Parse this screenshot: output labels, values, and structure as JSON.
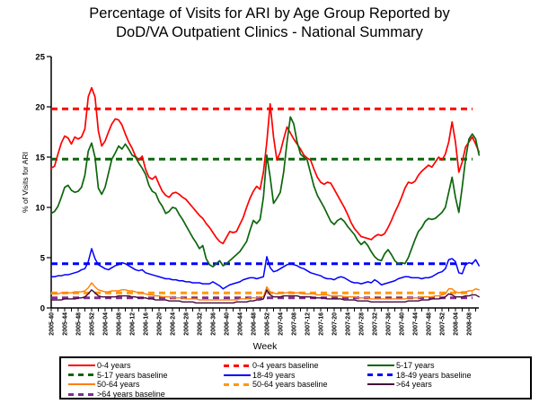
{
  "chart": {
    "title_line1": "Percentage of Visits for ARI by Age Group Reported by",
    "title_line2": "DoD/VA Outpatient Clinics - National Summary",
    "xlabel": "Week",
    "ylabel": "% of Visits for ARI"
  },
  "chart_data": {
    "type": "line",
    "title": "Percentage of Visits for ARI by Age Group Reported by DoD/VA Outpatient Clinics - National Summary",
    "xlabel": "Week",
    "ylabel": "% of Visits for ARI",
    "ylim": [
      0,
      25
    ],
    "grid": false,
    "legend_position": "bottom",
    "y_ticks": [
      0,
      5,
      10,
      15,
      20,
      25
    ],
    "n_points": 128,
    "x_start_week": "2005-40",
    "x_tick_interval_weeks": 4,
    "x_tick_labels": [
      "2005-40",
      "2005-44",
      "2005-48",
      "2005-52",
      "2006-04",
      "2006-08",
      "2006-12",
      "2006-16",
      "2006-20",
      "2006-24",
      "2006-28",
      "2006-32",
      "2006-36",
      "2006-40",
      "2006-44",
      "2006-48",
      "2006-52",
      "2007-04",
      "2007-08",
      "2007-12",
      "2007-16",
      "2007-20",
      "2007-24",
      "2007-28",
      "2007-32",
      "2007-36",
      "2007-40",
      "2007-44",
      "2007-48",
      "2007-52",
      "2008-04",
      "2008-08"
    ],
    "series": [
      {
        "name": "0-4 years",
        "color": "#FF0000",
        "width": 1.7,
        "values": [
          13.9,
          14.1,
          15.3,
          16.4,
          17.1,
          16.9,
          16.3,
          17.0,
          16.8,
          17.0,
          17.8,
          21.0,
          21.9,
          21.0,
          17.6,
          16.1,
          16.6,
          17.5,
          18.3,
          18.8,
          18.7,
          18.2,
          17.3,
          16.5,
          15.9,
          15.1,
          14.7,
          15.1,
          13.8,
          13.0,
          12.8,
          13.1,
          12.3,
          11.6,
          11.2,
          11.0,
          11.4,
          11.5,
          11.3,
          11.0,
          10.8,
          10.4,
          10.0,
          9.6,
          9.2,
          8.9,
          8.4,
          8.0,
          7.5,
          7.0,
          6.6,
          6.4,
          7.0,
          7.6,
          7.5,
          7.6,
          8.3,
          9.0,
          10.0,
          10.9,
          11.6,
          12.1,
          11.8,
          13.5,
          16.5,
          20.3,
          17.0,
          14.7,
          15.5,
          16.8,
          18.0,
          17.4,
          16.8,
          16.3,
          15.8,
          15.2,
          14.9,
          14.7,
          13.8,
          13.0,
          12.5,
          12.3,
          12.5,
          12.4,
          11.8,
          11.2,
          10.6,
          10.0,
          9.3,
          8.5,
          7.9,
          7.5,
          7.1,
          7.0,
          6.9,
          6.8,
          7.1,
          7.3,
          7.2,
          7.4,
          8.0,
          8.7,
          9.5,
          10.2,
          11.0,
          11.9,
          12.5,
          12.4,
          12.6,
          13.2,
          13.6,
          13.9,
          14.2,
          14.0,
          14.5,
          15.0,
          14.7,
          15.3,
          16.5,
          18.5,
          16.5,
          13.5,
          14.5,
          16.0,
          16.5,
          17.0,
          16.3,
          15.5
        ]
      },
      {
        "name": "5-17 years",
        "color": "#0D660D",
        "width": 1.7,
        "values": [
          9.4,
          9.6,
          10.1,
          11.0,
          12.0,
          12.2,
          11.7,
          11.5,
          11.6,
          12.0,
          13.2,
          15.6,
          16.4,
          15.0,
          11.9,
          11.3,
          12.0,
          13.4,
          14.8,
          15.4,
          16.1,
          15.8,
          16.3,
          15.8,
          15.2,
          15.0,
          14.4,
          13.9,
          13.3,
          12.2,
          11.6,
          11.4,
          10.6,
          10.1,
          9.4,
          9.6,
          10.0,
          9.9,
          9.3,
          8.8,
          8.2,
          7.6,
          7.0,
          6.5,
          5.9,
          6.2,
          4.9,
          4.3,
          4.1,
          4.4,
          4.7,
          4.2,
          4.4,
          4.7,
          5.0,
          5.3,
          5.6,
          6.1,
          6.6,
          7.7,
          8.7,
          8.4,
          8.8,
          11.0,
          15.2,
          13.0,
          10.4,
          10.9,
          11.5,
          13.5,
          16.5,
          19.0,
          18.3,
          16.5,
          15.3,
          15.0,
          14.7,
          13.4,
          12.1,
          11.2,
          10.6,
          10.0,
          9.3,
          8.6,
          8.3,
          8.7,
          8.9,
          8.6,
          8.1,
          7.7,
          7.3,
          6.7,
          6.3,
          6.6,
          6.2,
          5.6,
          5.1,
          4.8,
          4.7,
          5.4,
          5.8,
          5.3,
          4.7,
          4.4,
          4.5,
          4.4,
          5.0,
          5.9,
          6.8,
          7.6,
          8.0,
          8.6,
          8.9,
          8.8,
          8.9,
          9.2,
          9.5,
          10.0,
          11.5,
          13.0,
          11.0,
          9.5,
          12.0,
          14.8,
          16.8,
          17.3,
          16.8,
          15.2
        ]
      },
      {
        "name": "18-49 years",
        "color": "#0000FF",
        "width": 1.5,
        "values": [
          3.1,
          3.1,
          3.2,
          3.2,
          3.3,
          3.3,
          3.4,
          3.5,
          3.6,
          3.8,
          3.9,
          4.6,
          5.9,
          4.9,
          4.3,
          4.1,
          3.9,
          3.8,
          4.0,
          4.2,
          4.3,
          4.5,
          4.4,
          4.2,
          4.0,
          3.8,
          3.7,
          3.8,
          3.5,
          3.4,
          3.3,
          3.2,
          3.1,
          3.0,
          2.9,
          2.9,
          2.8,
          2.8,
          2.7,
          2.7,
          2.6,
          2.6,
          2.5,
          2.5,
          2.5,
          2.4,
          2.4,
          2.4,
          2.6,
          2.4,
          2.2,
          1.9,
          2.1,
          2.3,
          2.4,
          2.5,
          2.6,
          2.8,
          2.9,
          3.0,
          3.0,
          2.9,
          3.0,
          3.1,
          5.1,
          4.0,
          3.6,
          3.7,
          3.9,
          4.1,
          4.3,
          4.4,
          4.3,
          4.2,
          4.0,
          3.9,
          3.7,
          3.5,
          3.4,
          3.3,
          3.2,
          3.0,
          2.9,
          2.9,
          2.8,
          3.0,
          3.1,
          3.0,
          2.8,
          2.6,
          2.5,
          2.5,
          2.4,
          2.5,
          2.6,
          2.5,
          2.8,
          2.6,
          2.3,
          2.4,
          2.5,
          2.6,
          2.7,
          2.9,
          3.0,
          3.1,
          3.1,
          3.0,
          3.0,
          3.0,
          2.9,
          3.0,
          3.0,
          3.1,
          3.3,
          3.5,
          3.6,
          3.9,
          4.8,
          4.9,
          4.6,
          3.5,
          3.4,
          4.3,
          4.5,
          4.4,
          4.8,
          4.2
        ]
      },
      {
        "name": "50-64 years",
        "color": "#FF7F00",
        "width": 1.4,
        "values": [
          1.4,
          1.4,
          1.4,
          1.5,
          1.5,
          1.5,
          1.5,
          1.6,
          1.6,
          1.6,
          1.7,
          2.0,
          2.5,
          2.1,
          1.8,
          1.7,
          1.6,
          1.6,
          1.7,
          1.7,
          1.7,
          1.8,
          1.8,
          1.7,
          1.7,
          1.6,
          1.5,
          1.5,
          1.4,
          1.3,
          1.3,
          1.2,
          1.2,
          1.1,
          1.1,
          1.1,
          1.0,
          1.0,
          1.0,
          1.0,
          0.9,
          0.9,
          0.9,
          0.9,
          0.8,
          0.8,
          0.8,
          0.8,
          0.8,
          0.8,
          0.8,
          0.8,
          0.8,
          0.8,
          0.8,
          0.8,
          0.9,
          0.9,
          0.9,
          1.0,
          1.0,
          1.0,
          1.1,
          1.1,
          2.1,
          1.6,
          1.5,
          1.4,
          1.5,
          1.5,
          1.5,
          1.6,
          1.5,
          1.5,
          1.5,
          1.4,
          1.4,
          1.4,
          1.4,
          1.3,
          1.3,
          1.3,
          1.3,
          1.2,
          1.2,
          1.2,
          1.2,
          1.1,
          1.1,
          1.1,
          1.1,
          1.0,
          1.0,
          1.0,
          1.0,
          0.9,
          0.9,
          0.9,
          0.9,
          0.9,
          0.9,
          0.9,
          0.9,
          0.9,
          0.9,
          0.9,
          1.0,
          1.0,
          1.0,
          1.0,
          1.1,
          1.1,
          1.1,
          1.1,
          1.2,
          1.2,
          1.3,
          1.4,
          1.9,
          1.9,
          1.6,
          1.5,
          1.6,
          1.6,
          1.7,
          1.7,
          1.9,
          1.8
        ]
      },
      {
        "name": ">64 years",
        "color": "#45093F",
        "width": 1.4,
        "values": [
          0.8,
          0.8,
          0.8,
          0.8,
          0.9,
          0.9,
          0.9,
          0.9,
          1.0,
          1.0,
          1.1,
          1.4,
          1.8,
          1.5,
          1.2,
          1.1,
          1.1,
          1.1,
          1.1,
          1.1,
          1.2,
          1.2,
          1.2,
          1.2,
          1.1,
          1.1,
          1.0,
          1.0,
          1.0,
          0.9,
          0.9,
          0.8,
          0.8,
          0.8,
          0.8,
          0.7,
          0.7,
          0.7,
          0.7,
          0.6,
          0.6,
          0.6,
          0.6,
          0.5,
          0.5,
          0.5,
          0.5,
          0.5,
          0.5,
          0.5,
          0.5,
          0.5,
          0.5,
          0.5,
          0.5,
          0.6,
          0.6,
          0.6,
          0.6,
          0.7,
          0.7,
          0.8,
          0.8,
          0.9,
          1.8,
          1.3,
          1.1,
          1.1,
          1.1,
          1.2,
          1.2,
          1.2,
          1.2,
          1.2,
          1.1,
          1.1,
          1.1,
          1.1,
          1.0,
          1.0,
          1.0,
          1.0,
          0.9,
          0.9,
          0.9,
          0.9,
          0.9,
          0.8,
          0.8,
          0.8,
          0.8,
          0.7,
          0.7,
          0.7,
          0.7,
          0.6,
          0.6,
          0.6,
          0.6,
          0.6,
          0.6,
          0.6,
          0.6,
          0.6,
          0.6,
          0.6,
          0.7,
          0.7,
          0.7,
          0.7,
          0.8,
          0.8,
          0.8,
          0.9,
          0.9,
          0.9,
          1.0,
          1.1,
          1.4,
          1.3,
          1.1,
          1.1,
          1.1,
          1.2,
          1.2,
          1.3,
          1.3,
          1.1
        ]
      }
    ],
    "baselines": [
      {
        "name": "0-4 years baseline",
        "color": "#FF0000",
        "value": 19.8
      },
      {
        "name": "5-17 years baseline",
        "color": "#0D660D",
        "value": 14.8
      },
      {
        "name": "18-49 years baseline",
        "color": "#0000FF",
        "value": 4.4
      },
      {
        "name": "50-64 years baseline",
        "color": "#FF9900",
        "value": 1.5
      },
      {
        "name": ">64 years baseline",
        "color": "#7D2E8C",
        "value": 1.0
      }
    ]
  },
  "legend": {
    "items": [
      {
        "label": "0-4 years",
        "color": "#FF0000",
        "style": "solid"
      },
      {
        "label": "0-4 years baseline",
        "color": "#FF0000",
        "style": "dashed"
      },
      {
        "label": "5-17 years",
        "color": "#0D660D",
        "style": "solid"
      },
      {
        "label": "5-17 years baseline",
        "color": "#0D660D",
        "style": "dashed"
      },
      {
        "label": "18-49 years",
        "color": "#0000FF",
        "style": "solid"
      },
      {
        "label": "18-49 years baseline",
        "color": "#0000FF",
        "style": "dashed"
      },
      {
        "label": "50-64 years",
        "color": "#FF7F00",
        "style": "solid"
      },
      {
        "label": "50-64 years baseline",
        "color": "#FF9900",
        "style": "dashed"
      },
      {
        "label": ">64 years",
        "color": "#45093F",
        "style": "solid"
      },
      {
        "label": ">64 years baseline",
        "color": "#7D2E8C",
        "style": "dashed"
      }
    ]
  }
}
